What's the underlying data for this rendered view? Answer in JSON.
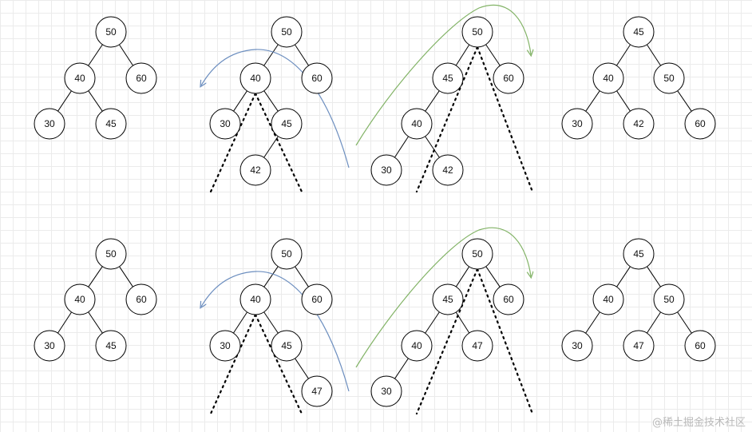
{
  "watermark": "@稀土掘金技术社区",
  "colors": {
    "grid": "#ebebeb",
    "node_stroke": "#000000",
    "edge": "#000000",
    "dotted": "#000000",
    "blue_arrow": "#6c8ebf",
    "green_arrow": "#82b366"
  },
  "rows": [
    {
      "panels": [
        {
          "nodes": [
            {
              "id": "a50",
              "label": "50"
            },
            {
              "id": "a40",
              "label": "40"
            },
            {
              "id": "a60",
              "label": "60"
            },
            {
              "id": "a30",
              "label": "30"
            },
            {
              "id": "a45",
              "label": "45"
            }
          ]
        },
        {
          "nodes": [
            {
              "id": "b50",
              "label": "50"
            },
            {
              "id": "b40",
              "label": "40"
            },
            {
              "id": "b60",
              "label": "60"
            },
            {
              "id": "b30",
              "label": "30"
            },
            {
              "id": "b45",
              "label": "45"
            },
            {
              "id": "b42",
              "label": "42"
            }
          ]
        },
        {
          "nodes": [
            {
              "id": "c50",
              "label": "50"
            },
            {
              "id": "c45",
              "label": "45"
            },
            {
              "id": "c60",
              "label": "60"
            },
            {
              "id": "c40",
              "label": "40"
            },
            {
              "id": "c30",
              "label": "30"
            },
            {
              "id": "c42",
              "label": "42"
            }
          ]
        },
        {
          "nodes": [
            {
              "id": "d45",
              "label": "45"
            },
            {
              "id": "d40",
              "label": "40"
            },
            {
              "id": "d50",
              "label": "50"
            },
            {
              "id": "d30",
              "label": "30"
            },
            {
              "id": "d42",
              "label": "42"
            },
            {
              "id": "d60",
              "label": "60"
            }
          ]
        }
      ]
    },
    {
      "panels": [
        {
          "nodes": [
            {
              "id": "e50",
              "label": "50"
            },
            {
              "id": "e40",
              "label": "40"
            },
            {
              "id": "e60",
              "label": "60"
            },
            {
              "id": "e30",
              "label": "30"
            },
            {
              "id": "e45",
              "label": "45"
            }
          ]
        },
        {
          "nodes": [
            {
              "id": "f50",
              "label": "50"
            },
            {
              "id": "f40",
              "label": "40"
            },
            {
              "id": "f60",
              "label": "60"
            },
            {
              "id": "f30",
              "label": "30"
            },
            {
              "id": "f45",
              "label": "45"
            },
            {
              "id": "f47",
              "label": "47"
            }
          ]
        },
        {
          "nodes": [
            {
              "id": "g50",
              "label": "50"
            },
            {
              "id": "g45",
              "label": "45"
            },
            {
              "id": "g60",
              "label": "60"
            },
            {
              "id": "g40",
              "label": "40"
            },
            {
              "id": "g47",
              "label": "47"
            },
            {
              "id": "g30",
              "label": "30"
            }
          ]
        },
        {
          "nodes": [
            {
              "id": "h45",
              "label": "45"
            },
            {
              "id": "h40",
              "label": "40"
            },
            {
              "id": "h50",
              "label": "50"
            },
            {
              "id": "h30",
              "label": "30"
            },
            {
              "id": "h47",
              "label": "47"
            },
            {
              "id": "h60",
              "label": "60"
            }
          ]
        }
      ]
    }
  ]
}
